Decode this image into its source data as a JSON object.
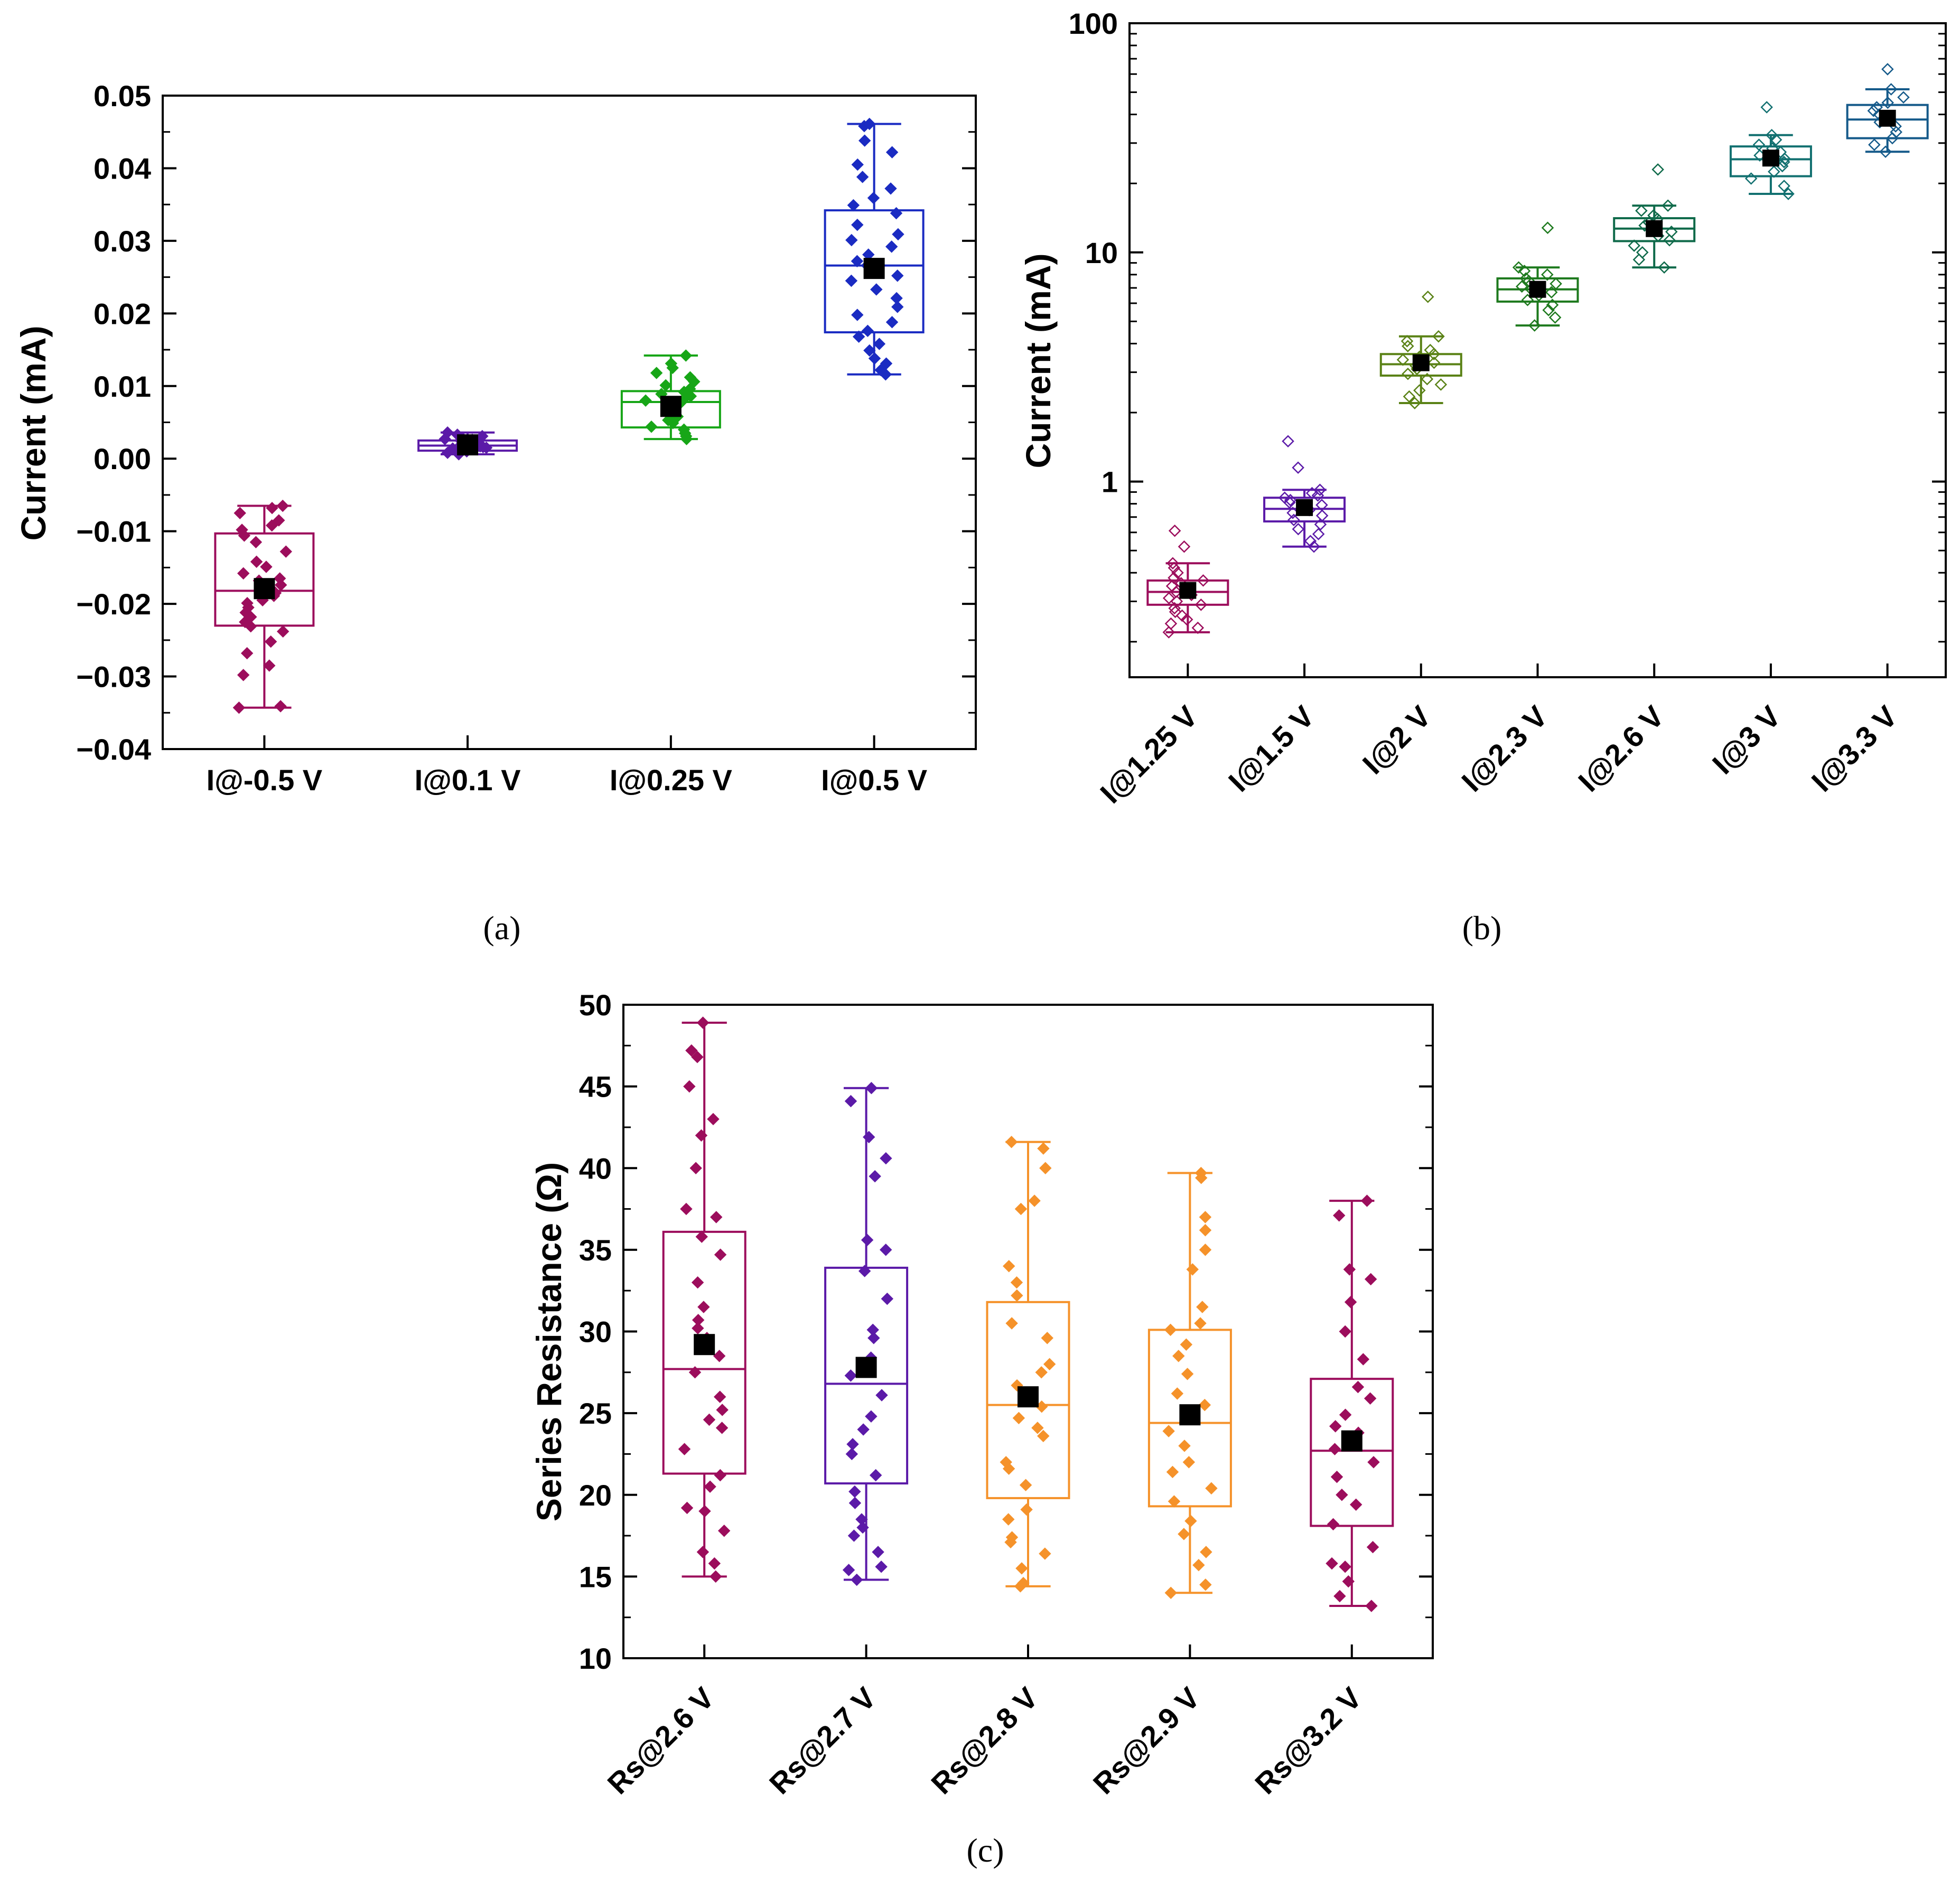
{
  "chart_data": [
    {
      "type": "box",
      "panel_label": "(a)",
      "ylabel": "Current (mA)",
      "yscale": "linear",
      "ylim": [
        -0.04,
        0.05
      ],
      "yticks": [
        -0.04,
        -0.03,
        -0.02,
        -0.01,
        0.0,
        0.01,
        0.02,
        0.03,
        0.04,
        0.05
      ],
      "ytick_labels": [
        "−0.04",
        "−0.03",
        "−0.02",
        "−0.01",
        "0.00",
        "0.01",
        "0.02",
        "0.03",
        "0.04",
        "0.05"
      ],
      "categories": [
        "I@-0.5 V",
        "I@0.1 V",
        "I@0.25 V",
        "I@0.5 V"
      ],
      "boxes": [
        {
          "q1": -0.023,
          "median": -0.0182,
          "q3": -0.0103,
          "whisker_low": -0.0343,
          "whisker_high": -0.0065,
          "mean": -0.0179,
          "color": "#9c0d5c"
        },
        {
          "q1": 0.0011,
          "median": 0.0018,
          "q3": 0.0025,
          "whisker_low": 0.0006,
          "whisker_high": 0.0036,
          "mean": 0.0019,
          "color": "#5b1aa8"
        },
        {
          "q1": 0.0043,
          "median": 0.0078,
          "q3": 0.0093,
          "whisker_low": 0.0027,
          "whisker_high": 0.0142,
          "mean": 0.0072,
          "color": "#17a617"
        },
        {
          "q1": 0.0174,
          "median": 0.0266,
          "q3": 0.0342,
          "whisker_low": 0.0116,
          "whisker_high": 0.0461,
          "mean": 0.0262,
          "color": "#1a2bc2"
        }
      ],
      "points": [
        [
          -0.0343,
          -0.0341,
          -0.0298,
          -0.0285,
          -0.0268,
          -0.0252,
          -0.0238,
          -0.0231,
          -0.0225,
          -0.0218,
          -0.0212,
          -0.0205,
          -0.0199,
          -0.0195,
          -0.0189,
          -0.0185,
          -0.0181,
          -0.0178,
          -0.0174,
          -0.0168,
          -0.0165,
          -0.0158,
          -0.0149,
          -0.0142,
          -0.0128,
          -0.0115,
          -0.0106,
          -0.0098,
          -0.0092,
          -0.0085,
          -0.0075,
          -0.0068,
          -0.0065
        ],
        [
          0.0006,
          0.0008,
          0.001,
          0.0012,
          0.0013,
          0.0014,
          0.0015,
          0.0016,
          0.0017,
          0.0018,
          0.0018,
          0.0019,
          0.002,
          0.0021,
          0.0022,
          0.0023,
          0.0024,
          0.0025,
          0.0026,
          0.0027,
          0.0029,
          0.0031,
          0.0033,
          0.0036
        ],
        [
          0.0027,
          0.0031,
          0.0035,
          0.004,
          0.0044,
          0.0049,
          0.0053,
          0.0058,
          0.0062,
          0.0066,
          0.007,
          0.0074,
          0.0077,
          0.008,
          0.0083,
          0.0086,
          0.0089,
          0.0092,
          0.0096,
          0.0101,
          0.0106,
          0.0112,
          0.0118,
          0.0125,
          0.0131,
          0.0142
        ],
        [
          0.0116,
          0.0122,
          0.0131,
          0.0138,
          0.0149,
          0.0158,
          0.0168,
          0.0176,
          0.0188,
          0.0198,
          0.0209,
          0.0221,
          0.0233,
          0.0245,
          0.0252,
          0.0261,
          0.0266,
          0.0272,
          0.0281,
          0.0292,
          0.0301,
          0.0309,
          0.0322,
          0.0338,
          0.0349,
          0.0359,
          0.0372,
          0.0388,
          0.0405,
          0.0422,
          0.0438,
          0.0458,
          0.0461
        ]
      ],
      "marker": "filled-diamond"
    },
    {
      "type": "box",
      "panel_label": "(b)",
      "ylabel": "Current (mA)",
      "yscale": "log",
      "ylim": [
        0.14,
        100
      ],
      "yticks": [
        1,
        10,
        100
      ],
      "ytick_labels": [
        "1",
        "10",
        "100"
      ],
      "categories": [
        "I@1.25 V",
        "I@1.5 V",
        "I@2 V",
        "I@2.3 V",
        "I@2.6 V",
        "I@3 V",
        "I@3.3 V"
      ],
      "boxes": [
        {
          "q1": 0.29,
          "median": 0.33,
          "q3": 0.37,
          "whisker_low": 0.22,
          "whisker_high": 0.44,
          "mean": 0.335,
          "color": "#9c0d5c"
        },
        {
          "q1": 0.67,
          "median": 0.76,
          "q3": 0.85,
          "whisker_low": 0.52,
          "whisker_high": 0.92,
          "mean": 0.77,
          "color": "#5b1aa8"
        },
        {
          "q1": 2.9,
          "median": 3.25,
          "q3": 3.6,
          "whisker_low": 2.2,
          "whisker_high": 4.3,
          "mean": 3.3,
          "color": "#5a8216"
        },
        {
          "q1": 6.1,
          "median": 6.9,
          "q3": 7.7,
          "whisker_low": 4.8,
          "whisker_high": 8.6,
          "mean": 6.9,
          "color": "#1e7a1e"
        },
        {
          "q1": 11.2,
          "median": 12.7,
          "q3": 14.1,
          "whisker_low": 8.6,
          "whisker_high": 16.0,
          "mean": 12.7,
          "color": "#0f6a4a"
        },
        {
          "q1": 21.5,
          "median": 25.5,
          "q3": 29.0,
          "whisker_low": 18.0,
          "whisker_high": 32.5,
          "mean": 25.8,
          "color": "#127070"
        },
        {
          "q1": 31.5,
          "median": 38.0,
          "q3": 44.0,
          "whisker_low": 27.5,
          "whisker_high": 51.5,
          "mean": 38.5,
          "color": "#155a8a"
        }
      ],
      "points": [
        [
          0.22,
          0.23,
          0.24,
          0.25,
          0.26,
          0.27,
          0.28,
          0.29,
          0.3,
          0.31,
          0.32,
          0.33,
          0.34,
          0.35,
          0.36,
          0.37,
          0.38,
          0.4,
          0.42,
          0.44,
          0.52,
          0.61
        ],
        [
          0.52,
          0.55,
          0.59,
          0.62,
          0.65,
          0.68,
          0.71,
          0.73,
          0.75,
          0.77,
          0.79,
          0.81,
          0.83,
          0.85,
          0.87,
          0.89,
          0.92,
          1.15,
          1.5
        ],
        [
          2.2,
          2.35,
          2.5,
          2.65,
          2.8,
          2.95,
          3.1,
          3.2,
          3.3,
          3.4,
          3.5,
          3.6,
          3.75,
          3.9,
          4.1,
          4.3,
          6.4
        ],
        [
          4.8,
          5.2,
          5.6,
          5.9,
          6.2,
          6.5,
          6.7,
          6.9,
          7.1,
          7.3,
          7.5,
          7.7,
          8.0,
          8.3,
          8.6,
          12.8
        ],
        [
          8.6,
          9.3,
          10.0,
          10.7,
          11.3,
          11.8,
          12.3,
          12.7,
          13.1,
          13.5,
          14.0,
          14.5,
          15.2,
          16.0,
          23.0
        ],
        [
          18.0,
          19.5,
          21.0,
          22.5,
          23.8,
          24.8,
          25.6,
          26.5,
          27.4,
          28.4,
          29.5,
          31.0,
          32.5,
          43.0
        ],
        [
          27.5,
          29.5,
          31.5,
          33.5,
          35.5,
          37.0,
          38.5,
          40.0,
          41.5,
          43.0,
          45.0,
          47.5,
          51.5,
          63.0
        ]
      ],
      "marker": "open-diamond"
    },
    {
      "type": "box",
      "panel_label": "(c)",
      "ylabel": "Series Resistance (Ω)",
      "yscale": "linear",
      "ylim": [
        10,
        50
      ],
      "yticks": [
        10,
        15,
        20,
        25,
        30,
        35,
        40,
        45,
        50
      ],
      "ytick_labels": [
        "10",
        "15",
        "20",
        "25",
        "30",
        "35",
        "40",
        "45",
        "50"
      ],
      "categories": [
        "Rs@2.6 V",
        "Rs@2.7 V",
        "Rs@2.8 V",
        "Rs@2.9 V",
        "Rs@3.2 V"
      ],
      "boxes": [
        {
          "q1": 21.3,
          "median": 27.7,
          "q3": 36.1,
          "whisker_low": 15.0,
          "whisker_high": 48.9,
          "mean": 29.2,
          "color": "#9c0d5c"
        },
        {
          "q1": 20.7,
          "median": 26.8,
          "q3": 33.9,
          "whisker_low": 14.8,
          "whisker_high": 44.9,
          "mean": 27.8,
          "color": "#5b1aa8"
        },
        {
          "q1": 19.8,
          "median": 25.5,
          "q3": 31.8,
          "whisker_low": 14.4,
          "whisker_high": 41.6,
          "mean": 26.0,
          "color": "#f5922a"
        },
        {
          "q1": 19.3,
          "median": 24.4,
          "q3": 30.1,
          "whisker_low": 14.0,
          "whisker_high": 39.7,
          "mean": 24.9,
          "color": "#f5922a"
        },
        {
          "q1": 18.1,
          "median": 22.7,
          "q3": 27.1,
          "whisker_low": 13.2,
          "whisker_high": 38.0,
          "mean": 23.3,
          "color": "#9c0d5c"
        }
      ],
      "points": [
        [
          15.0,
          15.8,
          16.5,
          17.8,
          19.0,
          19.2,
          20.5,
          21.2,
          22.8,
          24.1,
          24.6,
          25.2,
          26.0,
          27.5,
          28.5,
          29.6,
          30.2,
          30.7,
          31.5,
          33.0,
          34.7,
          35.8,
          37.0,
          37.5,
          40.0,
          42.0,
          43.0,
          45.0,
          46.8,
          47.2,
          48.9
        ],
        [
          14.8,
          15.4,
          15.6,
          16.5,
          17.5,
          18.0,
          18.5,
          19.5,
          20.2,
          21.2,
          22.5,
          23.1,
          24.0,
          24.8,
          26.1,
          27.3,
          28.4,
          29.6,
          30.1,
          32.0,
          33.7,
          35.0,
          35.6,
          39.5,
          40.6,
          41.9,
          44.1,
          44.9
        ],
        [
          14.4,
          14.6,
          15.5,
          16.4,
          17.1,
          17.4,
          18.5,
          19.1,
          20.6,
          21.6,
          22.0,
          23.6,
          24.1,
          24.7,
          25.4,
          26.7,
          27.5,
          28.0,
          29.6,
          30.5,
          32.2,
          33.0,
          34.0,
          37.5,
          38.0,
          40.0,
          41.2,
          41.6
        ],
        [
          14.0,
          14.5,
          15.7,
          16.5,
          17.6,
          18.4,
          19.6,
          20.4,
          21.4,
          22.0,
          23.0,
          23.9,
          24.8,
          25.5,
          26.2,
          27.4,
          28.5,
          29.2,
          30.1,
          30.5,
          31.5,
          33.8,
          35.0,
          36.2,
          37.0,
          39.4,
          39.7
        ],
        [
          13.2,
          13.8,
          14.7,
          15.6,
          15.8,
          16.8,
          18.2,
          19.4,
          20.0,
          21.1,
          22.0,
          22.8,
          23.8,
          24.2,
          24.9,
          25.9,
          26.6,
          28.3,
          30.0,
          31.8,
          33.2,
          33.8,
          37.1,
          38.0
        ]
      ],
      "marker": "filled-diamond"
    }
  ]
}
